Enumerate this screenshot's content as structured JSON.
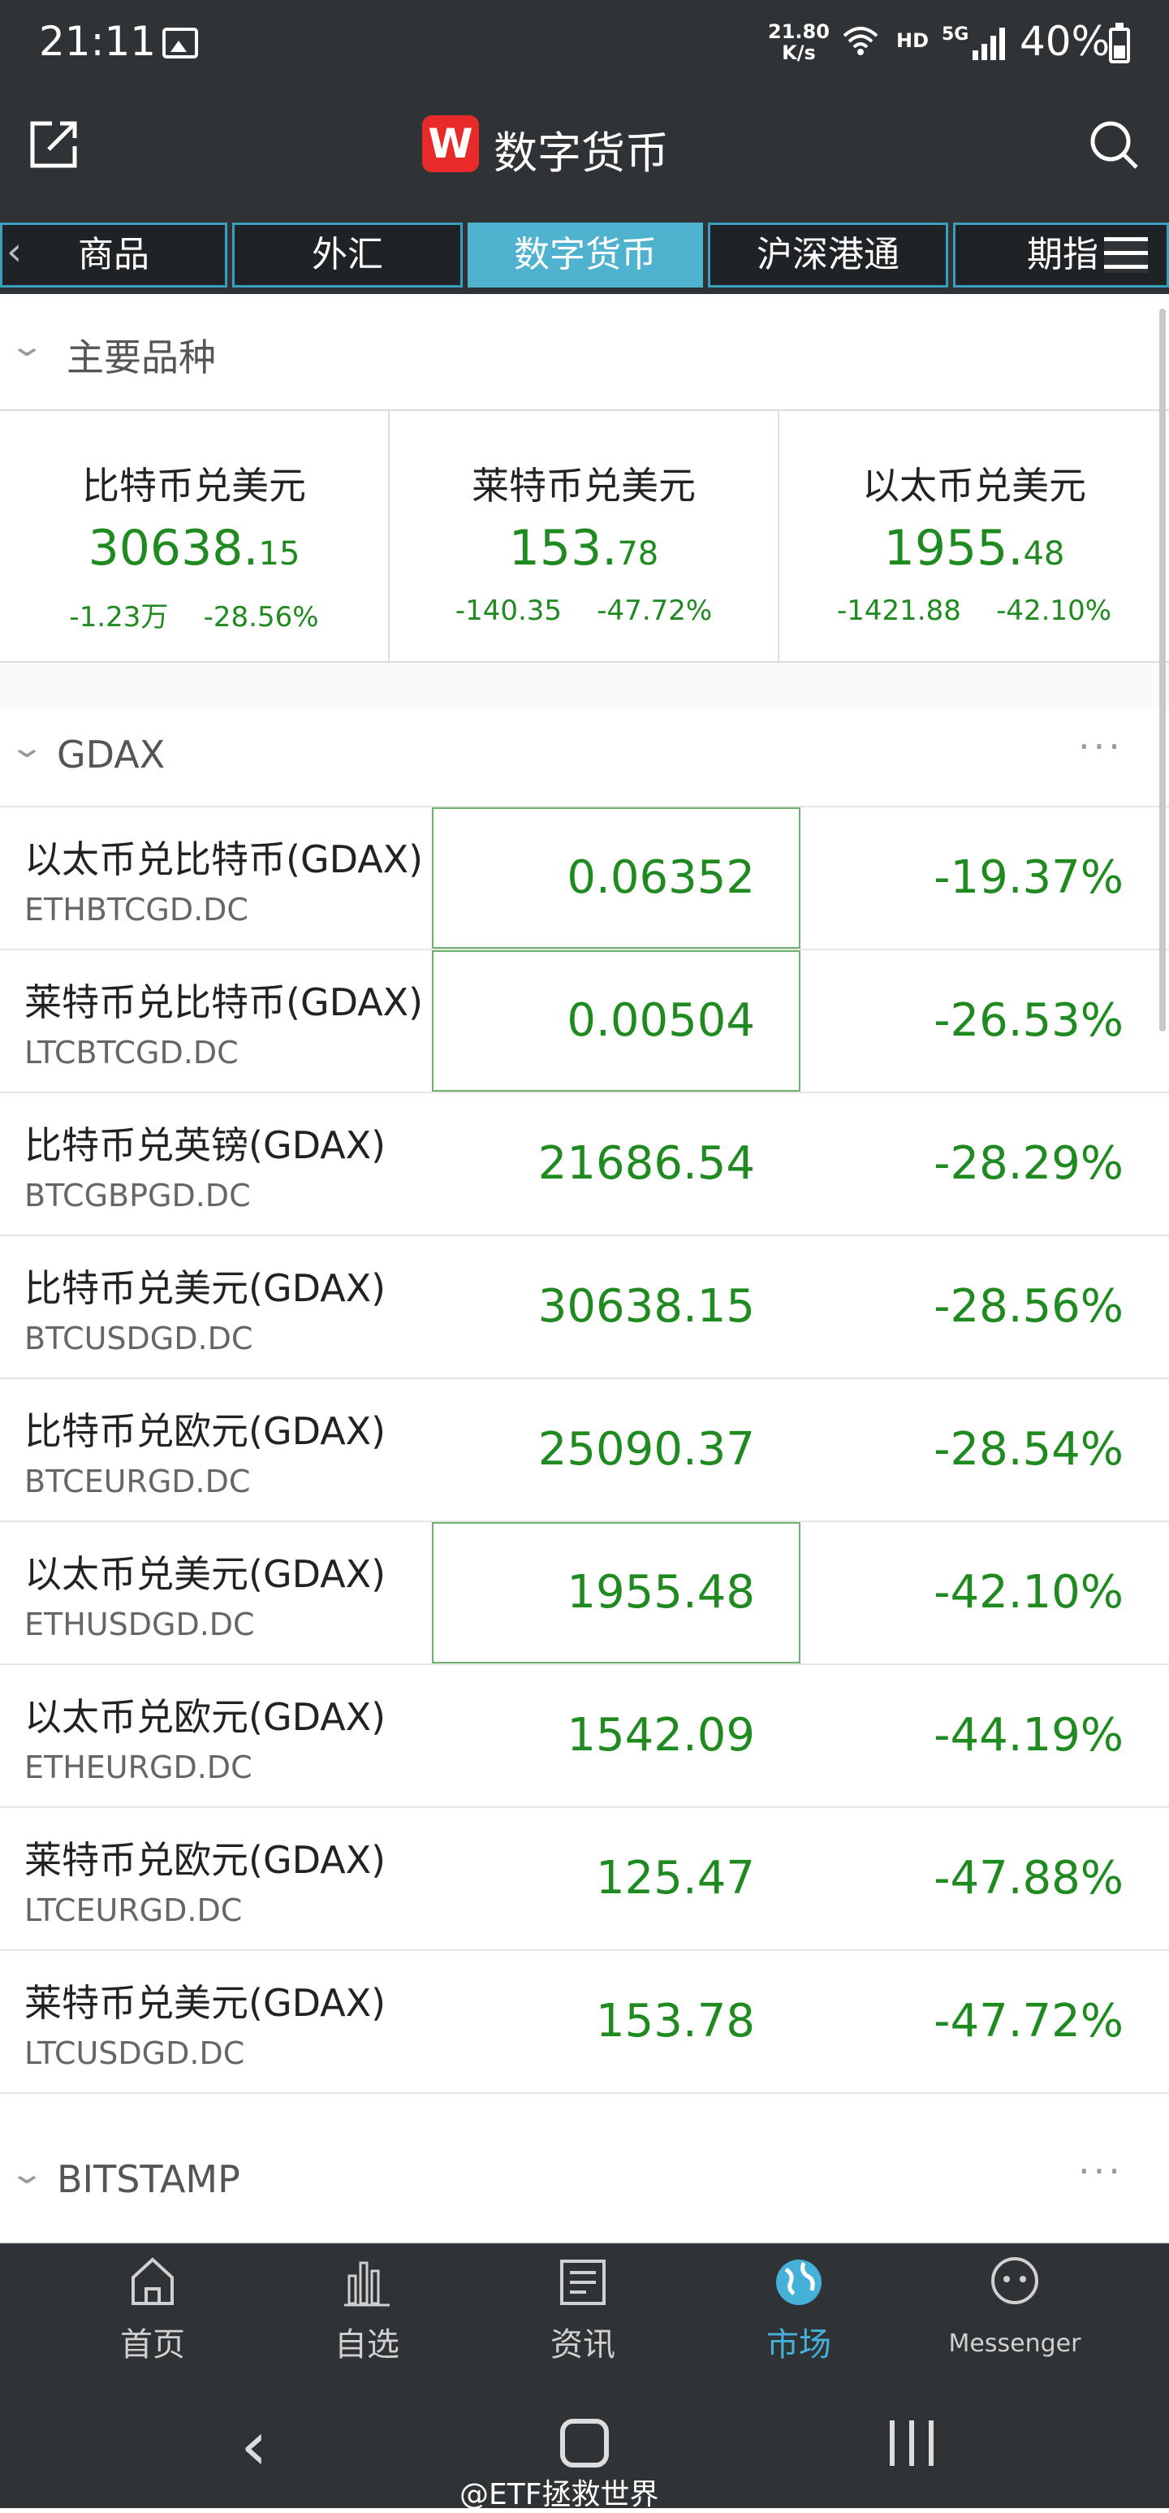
{
  "status_bar": {
    "time": "21:11",
    "net_speed_value": "21.80",
    "net_speed_unit": "K/s",
    "hd": "HD",
    "network": "5G",
    "battery": "40%"
  },
  "header": {
    "logo_letter": "W",
    "title": "数字货币"
  },
  "tabs": [
    {
      "label": "商品"
    },
    {
      "label": "外汇"
    },
    {
      "label": "数字货币",
      "active": true
    },
    {
      "label": "沪深港通"
    },
    {
      "label": "期指"
    }
  ],
  "main_section": {
    "title": "主要品种",
    "cards": [
      {
        "name": "比特币兑美元",
        "price_int": "30638.",
        "price_dec": "15",
        "change": "-1.23万",
        "pct": "-28.56%"
      },
      {
        "name": "莱特币兑美元",
        "price_int": "153.",
        "price_dec": "78",
        "change": "-140.35",
        "pct": "-47.72%"
      },
      {
        "name": "以太币兑美元",
        "price_int": "1955.",
        "price_dec": "48",
        "change": "-1421.88",
        "pct": "-42.10%"
      }
    ]
  },
  "gdax_section": {
    "title": "GDAX",
    "more": "···",
    "rows": [
      {
        "name": "以太币兑比特币(GDAX)",
        "code": "ETHBTCGD.DC",
        "price": "0.06352",
        "pct": "-19.37%"
      },
      {
        "name": "莱特币兑比特币(GDAX)",
        "code": "LTCBTCGD.DC",
        "price": "0.00504",
        "pct": "-26.53%"
      },
      {
        "name": "比特币兑英镑(GDAX)",
        "code": "BTCGBPGD.DC",
        "price": "21686.54",
        "pct": "-28.29%"
      },
      {
        "name": "比特币兑美元(GDAX)",
        "code": "BTCUSDGD.DC",
        "price": "30638.15",
        "pct": "-28.56%"
      },
      {
        "name": "比特币兑欧元(GDAX)",
        "code": "BTCEURGD.DC",
        "price": "25090.37",
        "pct": "-28.54%"
      },
      {
        "name": "以太币兑美元(GDAX)",
        "code": "ETHUSDGD.DC",
        "price": "1955.48",
        "pct": "-42.10%"
      },
      {
        "name": "以太币兑欧元(GDAX)",
        "code": "ETHEURGD.DC",
        "price": "1542.09",
        "pct": "-44.19%"
      },
      {
        "name": "莱特币兑欧元(GDAX)",
        "code": "LTCEURGD.DC",
        "price": "125.47",
        "pct": "-47.88%"
      },
      {
        "name": "莱特币兑美元(GDAX)",
        "code": "LTCUSDGD.DC",
        "price": "153.78",
        "pct": "-47.72%"
      }
    ]
  },
  "bitstamp_section": {
    "title": "BITSTAMP",
    "more": "···"
  },
  "bottom_nav": [
    {
      "label": "首页",
      "icon": "home-icon"
    },
    {
      "label": "自选",
      "icon": "bar-chart-icon"
    },
    {
      "label": "资讯",
      "icon": "news-icon"
    },
    {
      "label": "市场",
      "icon": "globe-icon",
      "active": true
    },
    {
      "label": "Messenger",
      "icon": "chat-icon"
    }
  ],
  "watermark": "@ETF拯救世界",
  "colors": {
    "dark_bg": "#2f3336",
    "accent": "#4fb3cf",
    "negative_green": "#1f8a1f",
    "logo_red": "#e82a2a"
  }
}
